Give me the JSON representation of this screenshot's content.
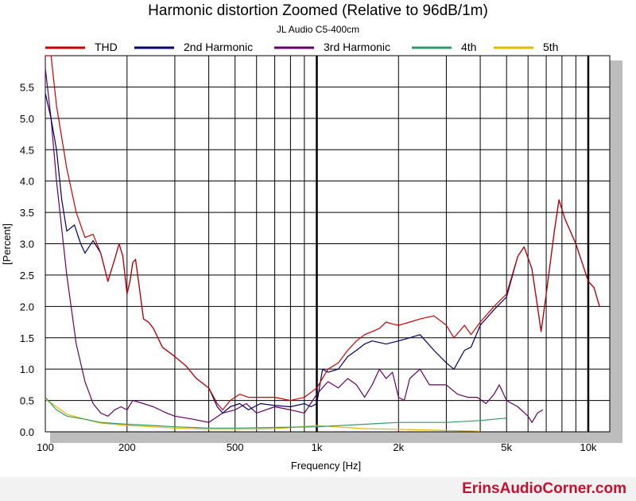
{
  "chart_data": {
    "type": "line",
    "title": "Harmonic distortion Zoomed (Relative to 96dB/1m)",
    "subtitle": "JL Audio C5-400cm",
    "xlabel": "Frequency [Hz]",
    "ylabel": "[Percent]",
    "xscale": "log",
    "xlim": [
      100,
      12000
    ],
    "ylim": [
      0,
      6
    ],
    "x_ticks": [
      {
        "value": 100,
        "label": "100"
      },
      {
        "value": 200,
        "label": "200"
      },
      {
        "value": 500,
        "label": "500"
      },
      {
        "value": 1000,
        "label": "1k"
      },
      {
        "value": 2000,
        "label": "2k"
      },
      {
        "value": 5000,
        "label": "5k"
      },
      {
        "value": 10000,
        "label": "10k"
      }
    ],
    "y_ticks": [
      {
        "value": 0.0,
        "label": "0.0"
      },
      {
        "value": 0.5,
        "label": "0.5"
      },
      {
        "value": 1.0,
        "label": "1.0"
      },
      {
        "value": 1.5,
        "label": "1.5"
      },
      {
        "value": 2.0,
        "label": "2.0"
      },
      {
        "value": 2.5,
        "label": "2.5"
      },
      {
        "value": 3.0,
        "label": "3.0"
      },
      {
        "value": 3.5,
        "label": "3.5"
      },
      {
        "value": 4.0,
        "label": "4.0"
      },
      {
        "value": 4.5,
        "label": "4.5"
      },
      {
        "value": 5.0,
        "label": "5.0"
      },
      {
        "value": 5.5,
        "label": "5.5"
      }
    ],
    "grid": true,
    "legend_position": "top",
    "series": [
      {
        "name": "THD",
        "color": "#cc0000",
        "points": [
          [
            100,
            6.0
          ],
          [
            105,
            6.0
          ],
          [
            110,
            5.2
          ],
          [
            120,
            4.2
          ],
          [
            130,
            3.5
          ],
          [
            140,
            3.1
          ],
          [
            150,
            3.15
          ],
          [
            160,
            2.85
          ],
          [
            170,
            2.4
          ],
          [
            180,
            2.75
          ],
          [
            187,
            3.0
          ],
          [
            193,
            2.8
          ],
          [
            200,
            2.2
          ],
          [
            205,
            2.4
          ],
          [
            210,
            2.7
          ],
          [
            215,
            2.75
          ],
          [
            222,
            2.3
          ],
          [
            230,
            1.8
          ],
          [
            240,
            1.75
          ],
          [
            250,
            1.65
          ],
          [
            270,
            1.35
          ],
          [
            300,
            1.2
          ],
          [
            330,
            1.05
          ],
          [
            360,
            0.85
          ],
          [
            400,
            0.7
          ],
          [
            430,
            0.45
          ],
          [
            450,
            0.35
          ],
          [
            480,
            0.5
          ],
          [
            520,
            0.6
          ],
          [
            560,
            0.55
          ],
          [
            620,
            0.55
          ],
          [
            700,
            0.55
          ],
          [
            800,
            0.5
          ],
          [
            900,
            0.55
          ],
          [
            1000,
            0.7
          ],
          [
            1100,
            1.0
          ],
          [
            1200,
            1.1
          ],
          [
            1300,
            1.3
          ],
          [
            1400,
            1.45
          ],
          [
            1500,
            1.55
          ],
          [
            1600,
            1.6
          ],
          [
            1700,
            1.65
          ],
          [
            1800,
            1.75
          ],
          [
            1900,
            1.72
          ],
          [
            2000,
            1.7
          ],
          [
            2200,
            1.75
          ],
          [
            2400,
            1.8
          ],
          [
            2700,
            1.85
          ],
          [
            3000,
            1.7
          ],
          [
            3200,
            1.5
          ],
          [
            3500,
            1.7
          ],
          [
            3700,
            1.55
          ],
          [
            4000,
            1.75
          ],
          [
            4500,
            2.0
          ],
          [
            5000,
            2.2
          ],
          [
            5500,
            2.8
          ],
          [
            5800,
            2.95
          ],
          [
            6200,
            2.6
          ],
          [
            6500,
            2.0
          ],
          [
            6700,
            1.6
          ],
          [
            7000,
            2.2
          ],
          [
            7500,
            3.2
          ],
          [
            7800,
            3.7
          ],
          [
            8200,
            3.4
          ],
          [
            9000,
            3.0
          ],
          [
            10000,
            2.4
          ],
          [
            10500,
            2.3
          ],
          [
            11000,
            2.0
          ]
        ]
      },
      {
        "name": "2nd Harmonic",
        "color": "#000066",
        "points": [
          [
            100,
            5.4
          ],
          [
            105,
            5.0
          ],
          [
            110,
            4.5
          ],
          [
            115,
            3.7
          ],
          [
            120,
            3.2
          ],
          [
            128,
            3.3
          ],
          [
            135,
            3.0
          ],
          [
            140,
            2.85
          ],
          [
            150,
            3.05
          ],
          [
            160,
            2.85
          ],
          [
            170,
            2.4
          ],
          [
            180,
            2.75
          ],
          [
            187,
            3.0
          ],
          [
            193,
            2.8
          ],
          [
            200,
            2.2
          ],
          [
            205,
            2.4
          ],
          [
            210,
            2.7
          ],
          [
            215,
            2.75
          ],
          [
            222,
            2.3
          ],
          [
            230,
            1.8
          ],
          [
            240,
            1.75
          ],
          [
            250,
            1.65
          ],
          [
            270,
            1.35
          ],
          [
            300,
            1.2
          ],
          [
            330,
            1.05
          ],
          [
            360,
            0.85
          ],
          [
            400,
            0.7
          ],
          [
            430,
            0.4
          ],
          [
            450,
            0.3
          ],
          [
            480,
            0.4
          ],
          [
            520,
            0.45
          ],
          [
            560,
            0.35
          ],
          [
            620,
            0.45
          ],
          [
            700,
            0.42
          ],
          [
            800,
            0.4
          ],
          [
            900,
            0.45
          ],
          [
            950,
            0.4
          ],
          [
            1000,
            0.45
          ],
          [
            1050,
            1.0
          ],
          [
            1100,
            0.95
          ],
          [
            1200,
            1.0
          ],
          [
            1300,
            1.2
          ],
          [
            1400,
            1.3
          ],
          [
            1500,
            1.4
          ],
          [
            1600,
            1.45
          ],
          [
            1800,
            1.4
          ],
          [
            2000,
            1.45
          ],
          [
            2200,
            1.5
          ],
          [
            2400,
            1.55
          ],
          [
            2700,
            1.3
          ],
          [
            3000,
            1.1
          ],
          [
            3200,
            1.0
          ],
          [
            3500,
            1.3
          ],
          [
            3700,
            1.35
          ],
          [
            4000,
            1.7
          ],
          [
            4500,
            1.95
          ],
          [
            5000,
            2.15
          ],
          [
            5500,
            2.8
          ],
          [
            5800,
            2.95
          ],
          [
            6200,
            2.6
          ],
          [
            6500,
            2.0
          ],
          [
            6700,
            1.6
          ],
          [
            7000,
            2.2
          ],
          [
            7500,
            3.2
          ],
          [
            7800,
            3.7
          ],
          [
            8200,
            3.4
          ],
          [
            9000,
            3.0
          ],
          [
            10000,
            2.4
          ],
          [
            10500,
            2.3
          ],
          [
            11000,
            2.0
          ]
        ]
      },
      {
        "name": "3rd Harmonic",
        "color": "#660066",
        "points": [
          [
            100,
            5.8
          ],
          [
            105,
            5.0
          ],
          [
            110,
            4.0
          ],
          [
            120,
            2.5
          ],
          [
            130,
            1.4
          ],
          [
            140,
            0.8
          ],
          [
            150,
            0.45
          ],
          [
            160,
            0.3
          ],
          [
            170,
            0.25
          ],
          [
            180,
            0.35
          ],
          [
            190,
            0.4
          ],
          [
            200,
            0.35
          ],
          [
            210,
            0.5
          ],
          [
            230,
            0.45
          ],
          [
            250,
            0.4
          ],
          [
            280,
            0.3
          ],
          [
            300,
            0.25
          ],
          [
            350,
            0.2
          ],
          [
            400,
            0.15
          ],
          [
            450,
            0.3
          ],
          [
            500,
            0.35
          ],
          [
            550,
            0.45
          ],
          [
            600,
            0.3
          ],
          [
            700,
            0.4
          ],
          [
            800,
            0.35
          ],
          [
            900,
            0.3
          ],
          [
            1000,
            0.6
          ],
          [
            1100,
            0.8
          ],
          [
            1200,
            0.7
          ],
          [
            1300,
            0.85
          ],
          [
            1400,
            0.75
          ],
          [
            1500,
            0.55
          ],
          [
            1600,
            0.75
          ],
          [
            1700,
            1.0
          ],
          [
            1800,
            0.85
          ],
          [
            1900,
            0.95
          ],
          [
            2000,
            0.55
          ],
          [
            2100,
            0.5
          ],
          [
            2200,
            0.85
          ],
          [
            2400,
            1.0
          ],
          [
            2600,
            0.75
          ],
          [
            2800,
            0.75
          ],
          [
            3000,
            0.75
          ],
          [
            3300,
            0.6
          ],
          [
            3600,
            0.55
          ],
          [
            3900,
            0.55
          ],
          [
            4200,
            0.45
          ],
          [
            4500,
            0.6
          ],
          [
            4700,
            0.75
          ],
          [
            5000,
            0.5
          ],
          [
            5500,
            0.4
          ],
          [
            6000,
            0.25
          ],
          [
            6200,
            0.15
          ],
          [
            6500,
            0.3
          ],
          [
            6800,
            0.35
          ]
        ]
      },
      {
        "name": "4th",
        "color": "#339966",
        "points": [
          [
            100,
            0.55
          ],
          [
            110,
            0.35
          ],
          [
            120,
            0.25
          ],
          [
            140,
            0.2
          ],
          [
            160,
            0.15
          ],
          [
            200,
            0.12
          ],
          [
            250,
            0.1
          ],
          [
            300,
            0.08
          ],
          [
            400,
            0.06
          ],
          [
            500,
            0.06
          ],
          [
            700,
            0.07
          ],
          [
            1000,
            0.08
          ],
          [
            1500,
            0.12
          ],
          [
            2000,
            0.15
          ],
          [
            2500,
            0.15
          ],
          [
            3000,
            0.15
          ],
          [
            4000,
            0.18
          ],
          [
            5000,
            0.22
          ]
        ]
      },
      {
        "name": "5th",
        "color": "#e6b800",
        "points": [
          [
            100,
            0.52
          ],
          [
            110,
            0.4
          ],
          [
            120,
            0.28
          ],
          [
            140,
            0.2
          ],
          [
            160,
            0.14
          ],
          [
            200,
            0.1
          ],
          [
            250,
            0.08
          ],
          [
            300,
            0.06
          ],
          [
            400,
            0.04
          ],
          [
            500,
            0.04
          ],
          [
            700,
            0.05
          ],
          [
            1000,
            0.1
          ],
          [
            1500,
            0.05
          ],
          [
            2000,
            0.04
          ],
          [
            3000,
            0.02
          ],
          [
            4000,
            0.01
          ]
        ]
      }
    ]
  },
  "watermark": "ErinsAudioCorner.com"
}
